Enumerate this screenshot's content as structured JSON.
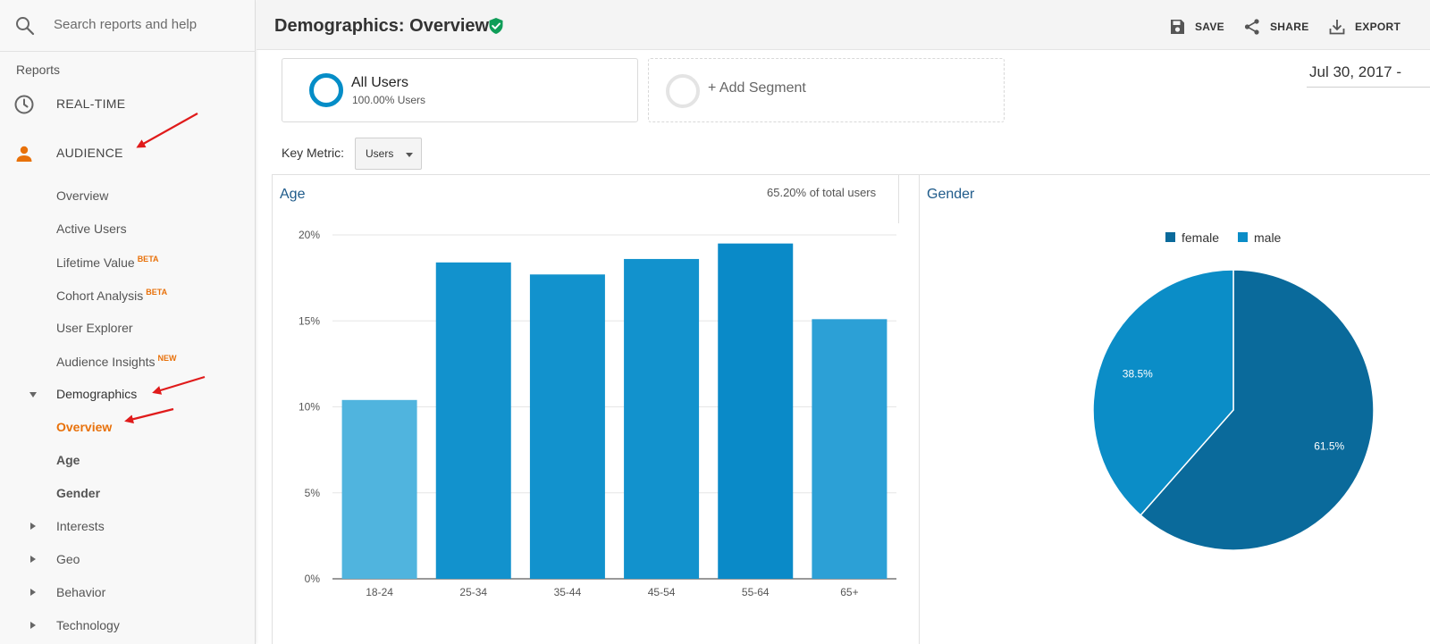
{
  "search": {
    "placeholder": "Search reports and help"
  },
  "sidebar": {
    "section_label": "Reports",
    "realtime": "REAL-TIME",
    "audience": "AUDIENCE",
    "items": [
      {
        "label": "Overview"
      },
      {
        "label": "Active Users"
      },
      {
        "label": "Lifetime Value",
        "badge": "BETA"
      },
      {
        "label": "Cohort Analysis",
        "badge": "BETA"
      },
      {
        "label": "User Explorer"
      },
      {
        "label": "Audience Insights",
        "badge": "NEW"
      },
      {
        "label": "Demographics"
      },
      {
        "label": "Overview"
      },
      {
        "label": "Age"
      },
      {
        "label": "Gender"
      },
      {
        "label": "Interests"
      },
      {
        "label": "Geo"
      },
      {
        "label": "Behavior"
      },
      {
        "label": "Technology"
      }
    ]
  },
  "header": {
    "title": "Demographics: Overview",
    "save": "SAVE",
    "share": "SHARE",
    "export": "EXPORT"
  },
  "segments": {
    "all_users": {
      "name": "All Users",
      "pct": "100.00% Users"
    },
    "add_segment": "+ Add Segment"
  },
  "date_range": "Jul 30, 2017 -",
  "key_metric": {
    "label": "Key Metric:",
    "value": "Users"
  },
  "colors": {
    "accent": "#e8710a",
    "link_blue": "#1e5a8a",
    "bar_light": "#50b4de",
    "bar_mid": "#1292cd",
    "bar_dark": "#0a8ac8",
    "female": "#0a6a9b",
    "male": "#0b8dc7",
    "verified": "#0f9d58"
  },
  "age_panel": {
    "title": "Age",
    "note": "65.20% of total users"
  },
  "gender_panel": {
    "title": "Gender"
  },
  "chart_data": [
    {
      "type": "bar",
      "title": "Age",
      "categories": [
        "18-24",
        "25-34",
        "35-44",
        "45-54",
        "55-64",
        "65+"
      ],
      "values": [
        10.4,
        18.4,
        17.7,
        18.6,
        19.5,
        15.1
      ],
      "ylim": [
        0,
        20
      ],
      "yticks": [
        0,
        5,
        10,
        15,
        20
      ],
      "ytick_labels": [
        "0%",
        "5%",
        "10%",
        "15%",
        "20%"
      ],
      "grid": true
    },
    {
      "type": "pie",
      "title": "Gender",
      "labels": [
        "female",
        "male"
      ],
      "values": [
        61.5,
        38.5
      ],
      "slice_labels": [
        "61.5%",
        "38.5%"
      ],
      "legend": "top"
    }
  ]
}
